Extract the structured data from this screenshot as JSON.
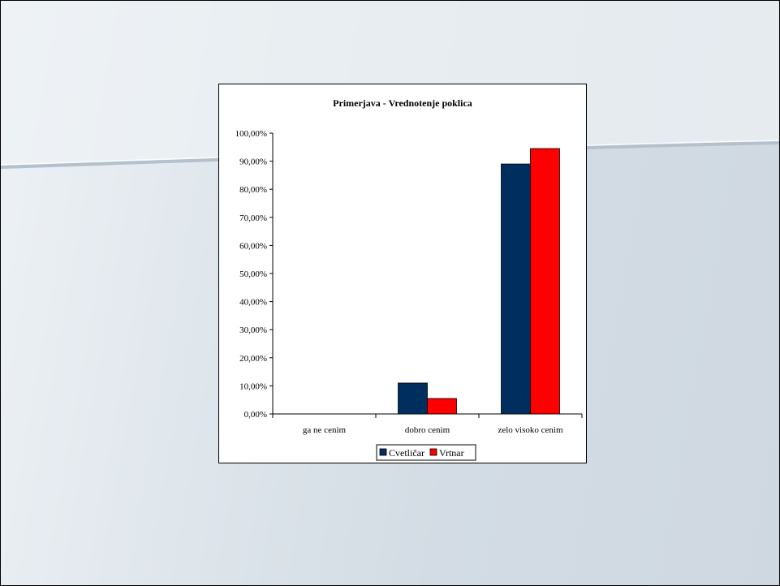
{
  "colors": {
    "series_1": "#002E5E",
    "series_2": "#FF0000",
    "slide_background": "#D3DCE4",
    "chart_background": "#FFFFFF"
  },
  "chart_data": {
    "type": "bar",
    "title": "Primerjava - Vrednotenje poklica",
    "categories": [
      "ga ne cenim",
      "dobro cenim",
      "zelo visoko cenim"
    ],
    "series": [
      {
        "name": "Cvetličar",
        "values": [
          0,
          11,
          89
        ]
      },
      {
        "name": "Vrtnar",
        "values": [
          0,
          5.5,
          94.5
        ]
      }
    ],
    "y_ticks": [
      "0,00%",
      "10,00%",
      "20,00%",
      "30,00%",
      "40,00%",
      "50,00%",
      "60,00%",
      "70,00%",
      "80,00%",
      "90,00%",
      "100,00%"
    ],
    "ylim": [
      0,
      100
    ],
    "xlabel": "",
    "ylabel": "",
    "grid": false,
    "legend_position": "bottom"
  }
}
